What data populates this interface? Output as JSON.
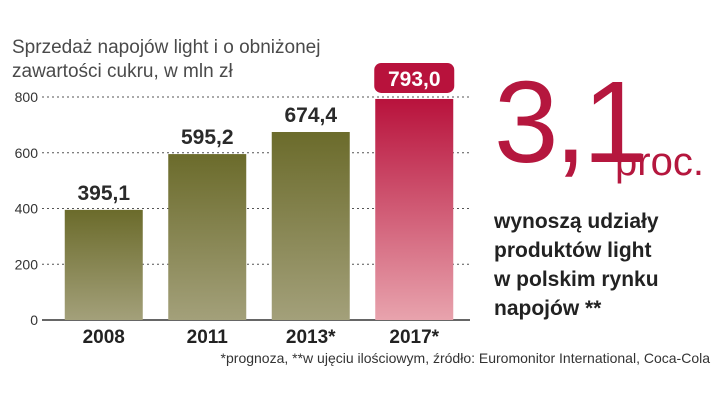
{
  "chart_data": {
    "type": "bar",
    "title": "Sprzedaż napojów light i o obniżonej zawartości cukru, w mln zł",
    "title_lines": [
      "Sprzedaż napojów light i o obniżonej",
      "zawartości cukru, w mln zł"
    ],
    "categories": [
      "2008",
      "2011",
      "2013*",
      "2017*"
    ],
    "values": [
      395.1,
      595.2,
      674.4,
      793.0
    ],
    "value_labels": [
      "395,1",
      "595,2",
      "674,4",
      "793,0"
    ],
    "ylim": [
      0,
      800
    ],
    "yticks": [
      0,
      200,
      400,
      600,
      800
    ],
    "grid": true,
    "highlight_index": 3,
    "colors": {
      "bar_top": "#6b6b2b",
      "bar_bottom": "#a3a07a",
      "highlight_top": "#b8123c",
      "highlight_bottom": "#e8a3ad",
      "highlight_label_bg": "#b8123c"
    }
  },
  "callout": {
    "number": "3,1",
    "unit": "proc.",
    "text_lines": [
      "wynoszą udziały",
      "produktów light",
      "w polskim rynku",
      "napojów **"
    ],
    "color": "#b5173e"
  },
  "footnote": "*prognoza, **w ujęciu ilościowym, źródło: Euromonitor International, Coca-Cola"
}
